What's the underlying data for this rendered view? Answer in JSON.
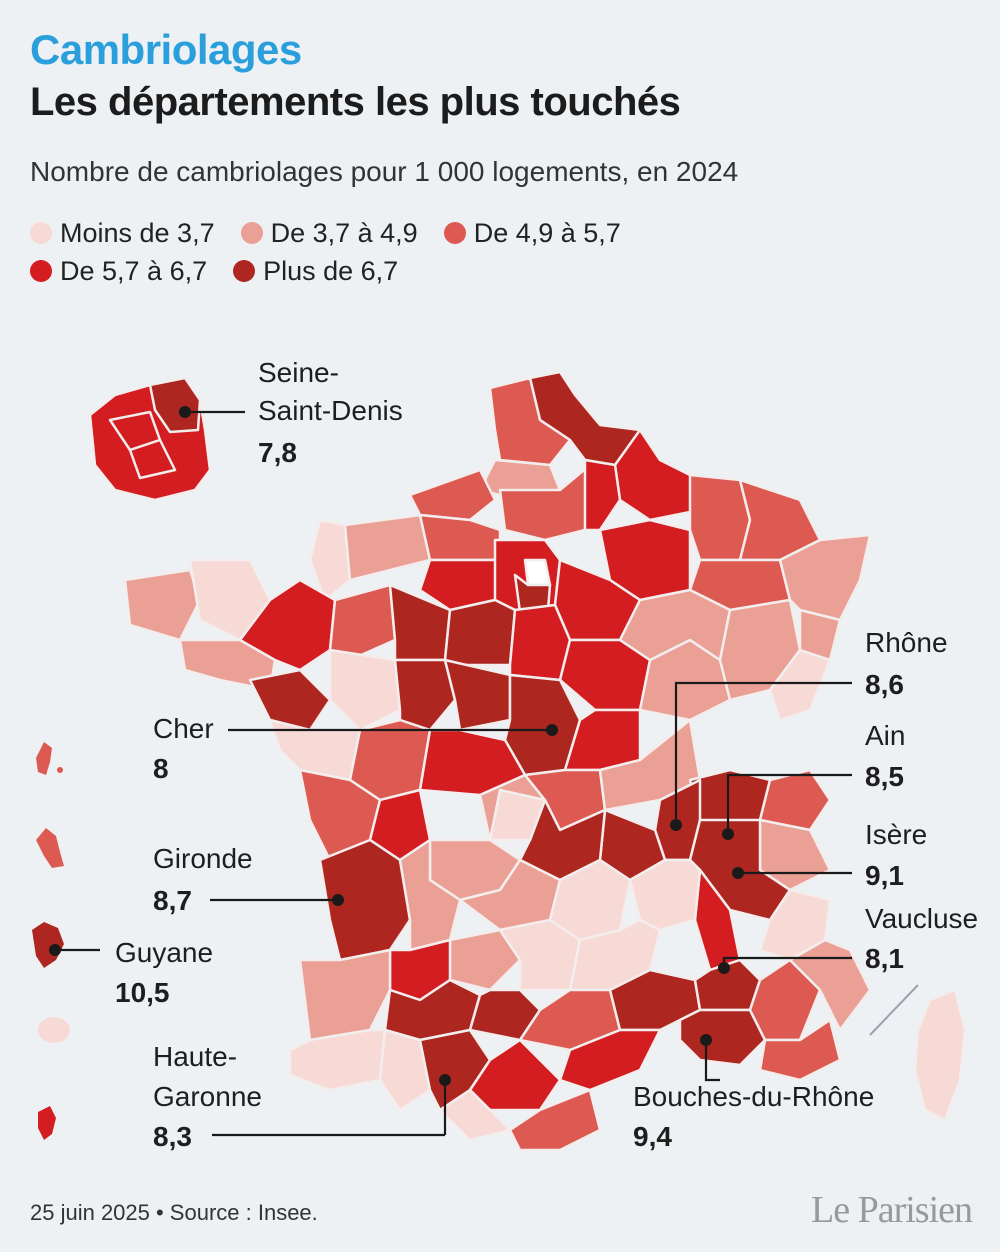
{
  "kicker": "Cambriolages",
  "title": "Les départements les plus touchés",
  "subtitle": "Nombre de cambriolages pour 1 000 logements, en 2024",
  "legend": [
    {
      "label": "Moins de 3,7",
      "color": "#f7dad6"
    },
    {
      "label": "De 3,7 à 4,9",
      "color": "#eba095"
    },
    {
      "label": "De 4,9 à 5,7",
      "color": "#dd5a52"
    },
    {
      "label": "De 5,7 à 6,7",
      "color": "#d31d20"
    },
    {
      "label": "Plus de 6,7",
      "color": "#ad2720"
    }
  ],
  "callouts": [
    {
      "name": "Seine-",
      "name2": "Saint-Denis",
      "value": "7,8"
    },
    {
      "name": "Rhône",
      "value": "8,6"
    },
    {
      "name": "Cher",
      "value": "8"
    },
    {
      "name": "Ain",
      "value": "8,5"
    },
    {
      "name": "Gironde",
      "value": "8,7"
    },
    {
      "name": "Isère",
      "value": "9,1"
    },
    {
      "name": "Guyane",
      "value": "10,5"
    },
    {
      "name": "Vaucluse",
      "value": "8,1"
    },
    {
      "name": "Haute-",
      "name2": "Garonne",
      "value": "8,3"
    },
    {
      "name": "Bouches-du-Rhône",
      "value": "9,4"
    }
  ],
  "footer": {
    "date_source": "25 juin 2025 • Source : Insee.",
    "logo": "Le Parisien"
  }
}
